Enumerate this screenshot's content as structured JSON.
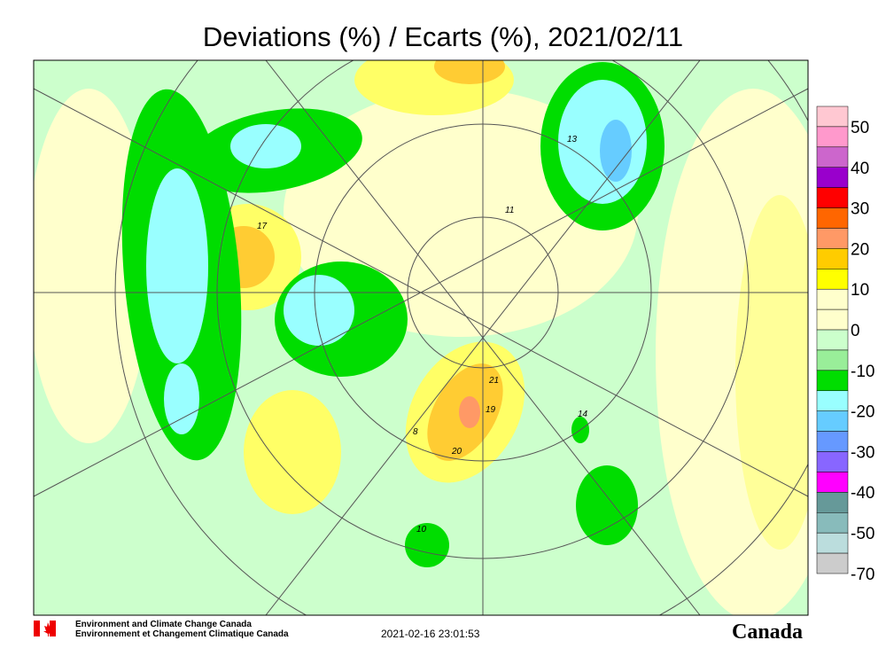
{
  "header": {
    "title": "Deviations (%) / Ecarts (%), 2021/02/11"
  },
  "legend": {
    "labels": [
      50,
      40,
      30,
      20,
      10,
      0,
      -10,
      -20,
      -30,
      -40,
      -50,
      -70
    ],
    "colors": [
      "#ffc8d2",
      "#ff99cc",
      "#cc66cc",
      "#9900cc",
      "#ff0000",
      "#ff6600",
      "#ff9966",
      "#ffcc00",
      "#ffff00",
      "#ffffcc",
      "#ffffcc",
      "#ccffcc",
      "#99ee99",
      "#00dd00",
      "#99ffff",
      "#66ccff",
      "#6699ff",
      "#8866ff",
      "#ff00ff",
      "#669999",
      "#88bbbb",
      "#bbdddd",
      "#cccccc"
    ]
  },
  "map": {
    "contour_labels": [
      "13",
      "17",
      "11",
      "21",
      "19",
      "20",
      "14",
      "8",
      "10"
    ]
  },
  "footer": {
    "agency_en": "Environment and Climate Change Canada",
    "agency_fr": "Environnement et Changement Climatique Canada",
    "timestamp": "2021-02-16 23:01:53",
    "wordmark": "Canada"
  }
}
